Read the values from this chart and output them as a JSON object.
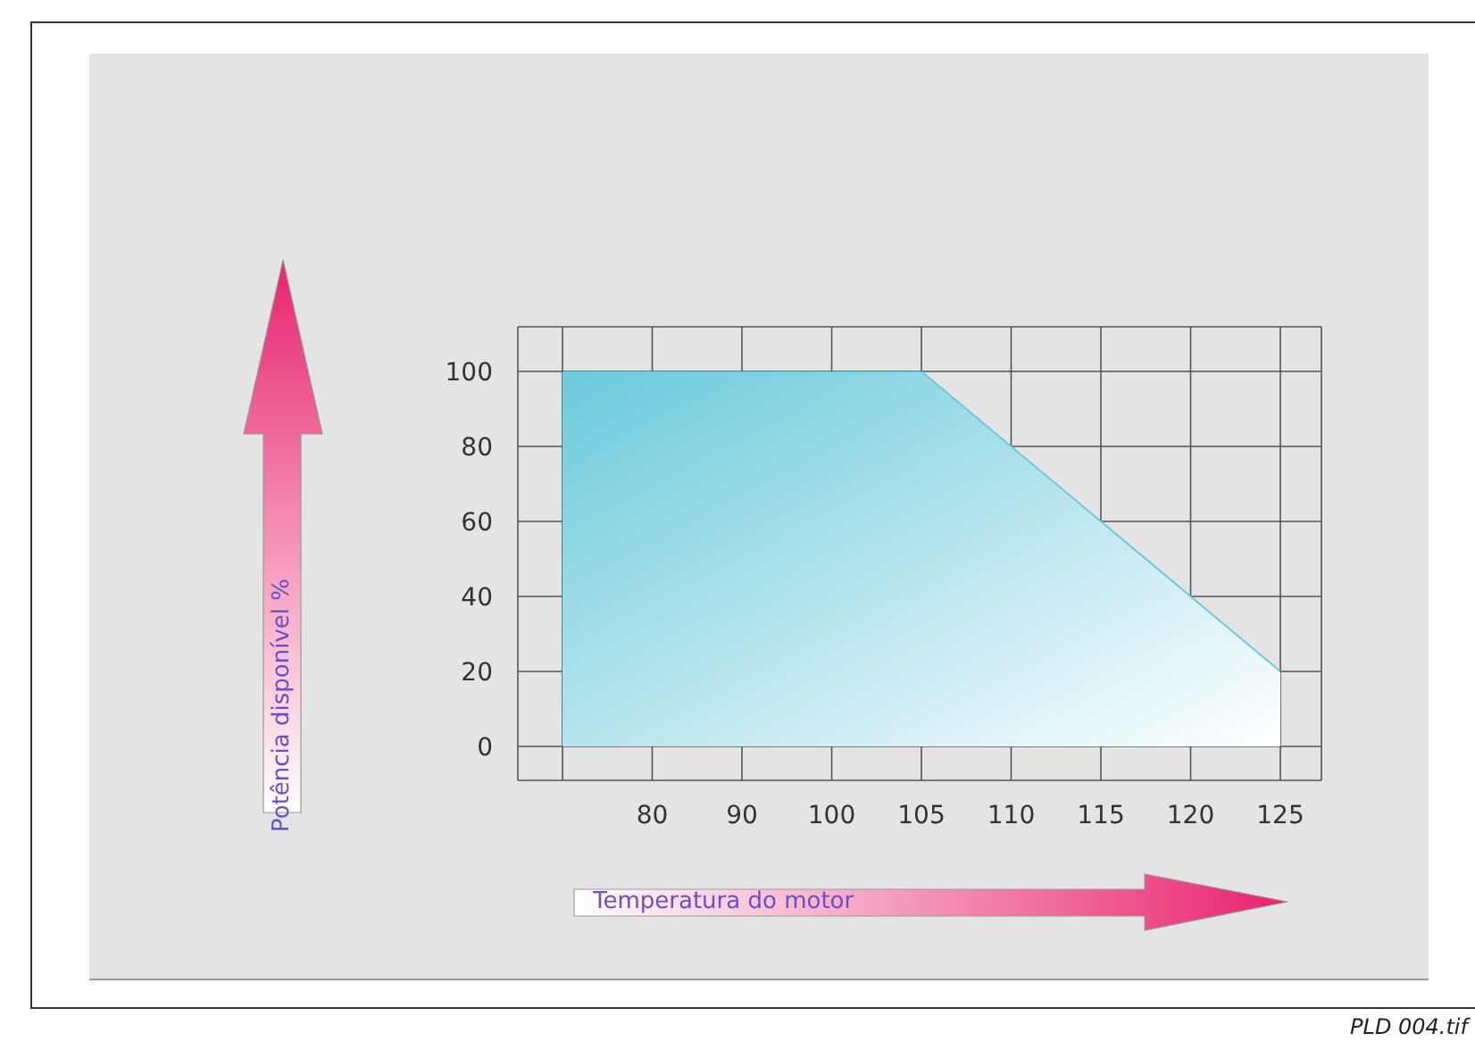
{
  "chart_data": {
    "type": "area",
    "xlabel": "Temperatura do motor",
    "categories": [
      null,
      "80",
      "90",
      "100",
      "105",
      "110",
      "115",
      "120",
      "125"
    ],
    "values": [
      100,
      100,
      100,
      100,
      100,
      80,
      60,
      40,
      20
    ],
    "color": "#6ccadc",
    "ylim": [
      0,
      100
    ],
    "yticks": [
      0,
      20,
      40,
      60,
      80,
      100
    ],
    "grid": true,
    "annotations": [
      "Potência disponível %",
      "PLD 004.tif"
    ]
  }
}
